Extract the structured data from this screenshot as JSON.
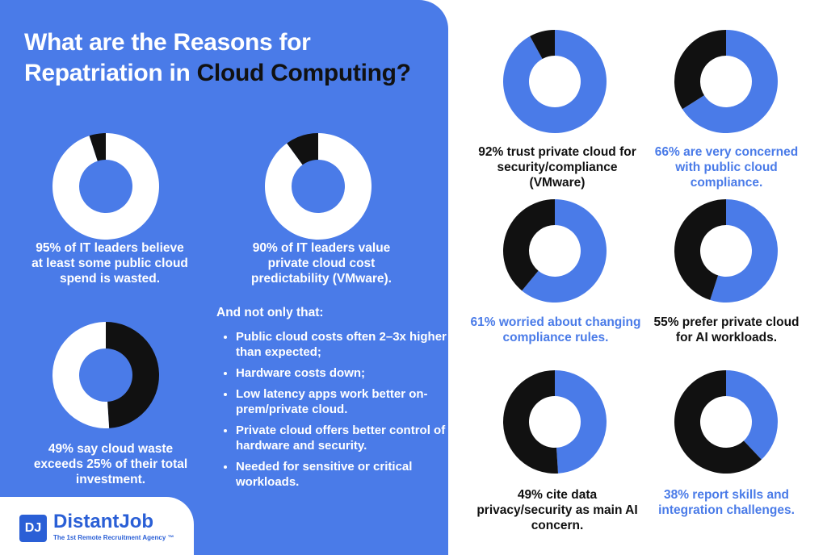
{
  "title": {
    "line1": "What are the Reasons for",
    "line2_prefix": "Repatriation in ",
    "line2_highlight": "Cloud Computing?"
  },
  "colors": {
    "blue": "#4a7be8",
    "black": "#111111",
    "white": "#ffffff",
    "brand": "#2a5fd6"
  },
  "chart_data": [
    {
      "type": "pie",
      "values": [
        95,
        5
      ],
      "caption": "95% of IT leaders believe at least some public cloud spend is wasted.",
      "colors": [
        "#ffffff",
        "#111111"
      ]
    },
    {
      "type": "pie",
      "values": [
        90,
        10
      ],
      "caption": "90% of IT leaders value private cloud cost predictability (VMware).",
      "colors": [
        "#ffffff",
        "#111111"
      ]
    },
    {
      "type": "pie",
      "values": [
        49,
        51
      ],
      "caption": "49% say cloud waste exceeds 25% of their total investment.",
      "colors": [
        "#111111",
        "#ffffff"
      ]
    },
    {
      "type": "pie",
      "values": [
        92,
        8
      ],
      "caption": "92% trust private cloud for security/compliance (VMware)",
      "colors": [
        "#4a7be8",
        "#111111"
      ]
    },
    {
      "type": "pie",
      "values": [
        66,
        34
      ],
      "caption": "66% are very concerned with public cloud compliance.",
      "colors": [
        "#4a7be8",
        "#111111"
      ]
    },
    {
      "type": "pie",
      "values": [
        61,
        39
      ],
      "caption": "61% worried about changing compliance rules.",
      "colors": [
        "#4a7be8",
        "#111111"
      ]
    },
    {
      "type": "pie",
      "values": [
        55,
        45
      ],
      "caption": "55% prefer private cloud for AI workloads.",
      "colors": [
        "#4a7be8",
        "#111111"
      ]
    },
    {
      "type": "pie",
      "values": [
        49,
        51
      ],
      "caption": "49% cite data privacy/security as main AI concern.",
      "colors": [
        "#4a7be8",
        "#111111"
      ]
    },
    {
      "type": "pie",
      "values": [
        38,
        62
      ],
      "caption": "38% report skills and integration challenges.",
      "colors": [
        "#4a7be8",
        "#111111"
      ]
    }
  ],
  "extras": {
    "heading": "And not only that:",
    "items": [
      "Public cloud costs often 2–3x higher than expected;",
      "Hardware costs down;",
      "Low latency apps work better on-prem/private cloud.",
      "Private cloud offers better control of hardware and security.",
      "Needed for sensitive or critical workloads."
    ]
  },
  "logo": {
    "mark": "DJ",
    "name": "DistantJob",
    "tagline": "The 1st Remote Recruitment Agency ™"
  }
}
